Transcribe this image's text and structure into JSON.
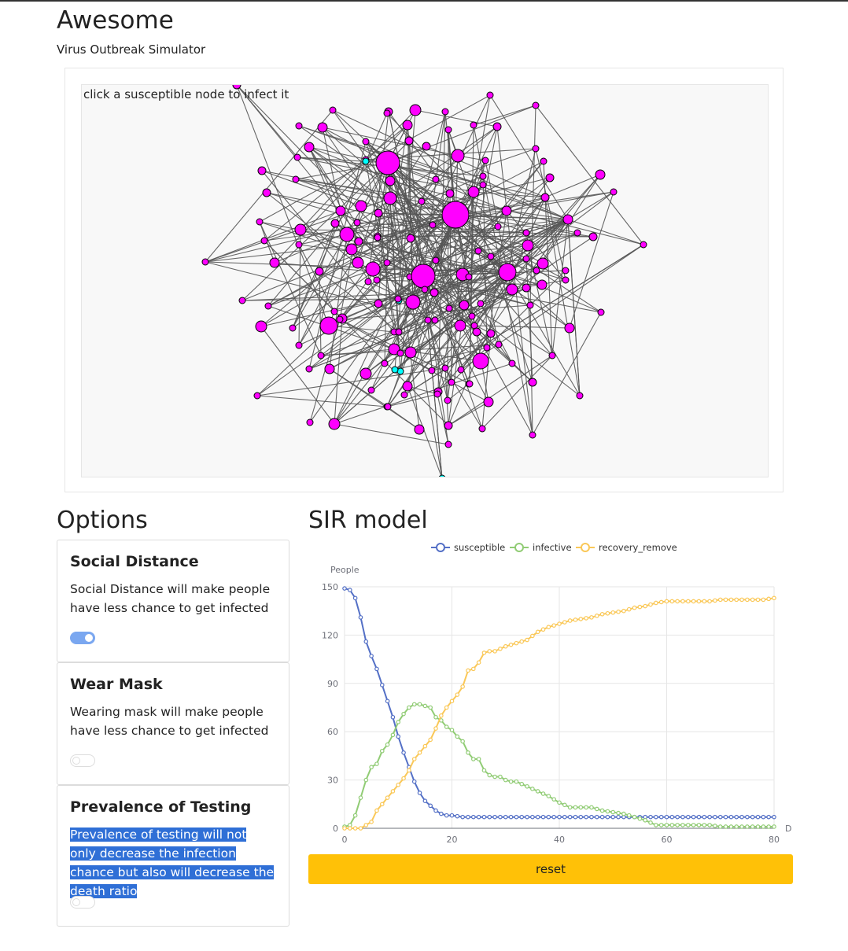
{
  "app": {
    "title": "Awesome",
    "subtitle": "Virus Outbreak Simulator"
  },
  "graph": {
    "hint": "click a susceptible node to infect it",
    "colors": {
      "susceptible": "#ff00ff",
      "recovered": "#00ffff",
      "edge": "#555555"
    }
  },
  "options": {
    "title": "Options",
    "cards": [
      {
        "title": "Social Distance",
        "description": "Social Distance will make people have less chance to get infected",
        "enabled": true
      },
      {
        "title": "Wear Mask",
        "description": "Wearing mask will make people have less chance to get infected",
        "enabled": false
      },
      {
        "title": "Prevalence of Testing",
        "description": "Prevalence of testing will not only decrease the infection chance but also will decrease the death ratio",
        "enabled": false
      }
    ]
  },
  "sir": {
    "title": "SIR model",
    "reset_label": "reset"
  },
  "chart_data": {
    "type": "line",
    "ylabel": "People",
    "xlabel": "D",
    "xlim": [
      0,
      80
    ],
    "ylim": [
      0,
      150
    ],
    "xticks": [
      0,
      20,
      40,
      60,
      80
    ],
    "yticks": [
      0,
      30,
      60,
      90,
      120,
      150
    ],
    "grid": true,
    "legend_position": "top",
    "series": [
      {
        "name": "susceptible",
        "color": "#5470c6",
        "points": [
          [
            0,
            149
          ],
          [
            1,
            148
          ],
          [
            2,
            143
          ],
          [
            3,
            131
          ],
          [
            4,
            116
          ],
          [
            5,
            107
          ],
          [
            6,
            99
          ],
          [
            7,
            89
          ],
          [
            8,
            79
          ],
          [
            9,
            69
          ],
          [
            10,
            57
          ],
          [
            11,
            47
          ],
          [
            12,
            38
          ],
          [
            13,
            29
          ],
          [
            14,
            22
          ],
          [
            15,
            17
          ],
          [
            16,
            14
          ],
          [
            17,
            11
          ],
          [
            18,
            9
          ],
          [
            19,
            8
          ],
          [
            20,
            8
          ],
          [
            22,
            7
          ],
          [
            24,
            7
          ],
          [
            30,
            7
          ],
          [
            40,
            7
          ],
          [
            50,
            7
          ],
          [
            60,
            7
          ],
          [
            70,
            7
          ],
          [
            80,
            7
          ]
        ]
      },
      {
        "name": "infective",
        "color": "#91cc75",
        "points": [
          [
            0,
            1
          ],
          [
            1,
            2
          ],
          [
            2,
            8
          ],
          [
            3,
            19
          ],
          [
            4,
            30
          ],
          [
            5,
            38
          ],
          [
            6,
            40
          ],
          [
            7,
            48
          ],
          [
            8,
            52
          ],
          [
            9,
            58
          ],
          [
            10,
            66
          ],
          [
            11,
            71
          ],
          [
            12,
            75
          ],
          [
            13,
            77
          ],
          [
            14,
            77
          ],
          [
            15,
            76
          ],
          [
            16,
            75
          ],
          [
            17,
            69
          ],
          [
            18,
            67
          ],
          [
            19,
            63
          ],
          [
            20,
            61
          ],
          [
            21,
            57
          ],
          [
            22,
            54
          ],
          [
            23,
            47
          ],
          [
            24,
            43
          ],
          [
            25,
            43
          ],
          [
            26,
            36
          ],
          [
            27,
            33
          ],
          [
            28,
            32
          ],
          [
            29,
            32
          ],
          [
            30,
            30
          ],
          [
            31,
            29
          ],
          [
            32,
            29
          ],
          [
            34,
            26
          ],
          [
            36,
            23
          ],
          [
            38,
            20
          ],
          [
            40,
            16
          ],
          [
            42,
            13
          ],
          [
            44,
            13
          ],
          [
            46,
            13
          ],
          [
            48,
            11
          ],
          [
            50,
            10
          ],
          [
            52,
            9
          ],
          [
            54,
            7
          ],
          [
            56,
            5
          ],
          [
            58,
            2
          ],
          [
            60,
            2
          ],
          [
            64,
            2
          ],
          [
            68,
            2
          ],
          [
            70,
            1
          ],
          [
            74,
            1
          ],
          [
            78,
            1
          ],
          [
            80,
            1
          ]
        ]
      },
      {
        "name": "recovery_remove",
        "color": "#fac858",
        "points": [
          [
            0,
            0
          ],
          [
            1,
            0
          ],
          [
            2,
            0
          ],
          [
            3,
            0
          ],
          [
            4,
            2
          ],
          [
            5,
            4
          ],
          [
            6,
            11
          ],
          [
            7,
            15
          ],
          [
            8,
            19
          ],
          [
            9,
            23
          ],
          [
            10,
            27
          ],
          [
            11,
            31
          ],
          [
            12,
            36
          ],
          [
            13,
            43
          ],
          [
            14,
            47
          ],
          [
            15,
            51
          ],
          [
            16,
            55
          ],
          [
            17,
            62
          ],
          [
            18,
            70
          ],
          [
            19,
            75
          ],
          [
            20,
            79
          ],
          [
            21,
            83
          ],
          [
            22,
            88
          ],
          [
            23,
            98
          ],
          [
            24,
            99
          ],
          [
            25,
            103
          ],
          [
            26,
            109
          ],
          [
            27,
            110
          ],
          [
            28,
            110
          ],
          [
            30,
            113
          ],
          [
            32,
            115
          ],
          [
            34,
            117
          ],
          [
            36,
            122
          ],
          [
            38,
            125
          ],
          [
            40,
            127
          ],
          [
            42,
            129
          ],
          [
            44,
            130
          ],
          [
            46,
            131
          ],
          [
            48,
            133
          ],
          [
            50,
            134
          ],
          [
            52,
            135
          ],
          [
            54,
            137
          ],
          [
            56,
            138
          ],
          [
            58,
            140
          ],
          [
            60,
            141
          ],
          [
            64,
            141
          ],
          [
            68,
            141
          ],
          [
            70,
            142
          ],
          [
            74,
            142
          ],
          [
            78,
            142
          ],
          [
            80,
            143
          ]
        ]
      }
    ]
  }
}
